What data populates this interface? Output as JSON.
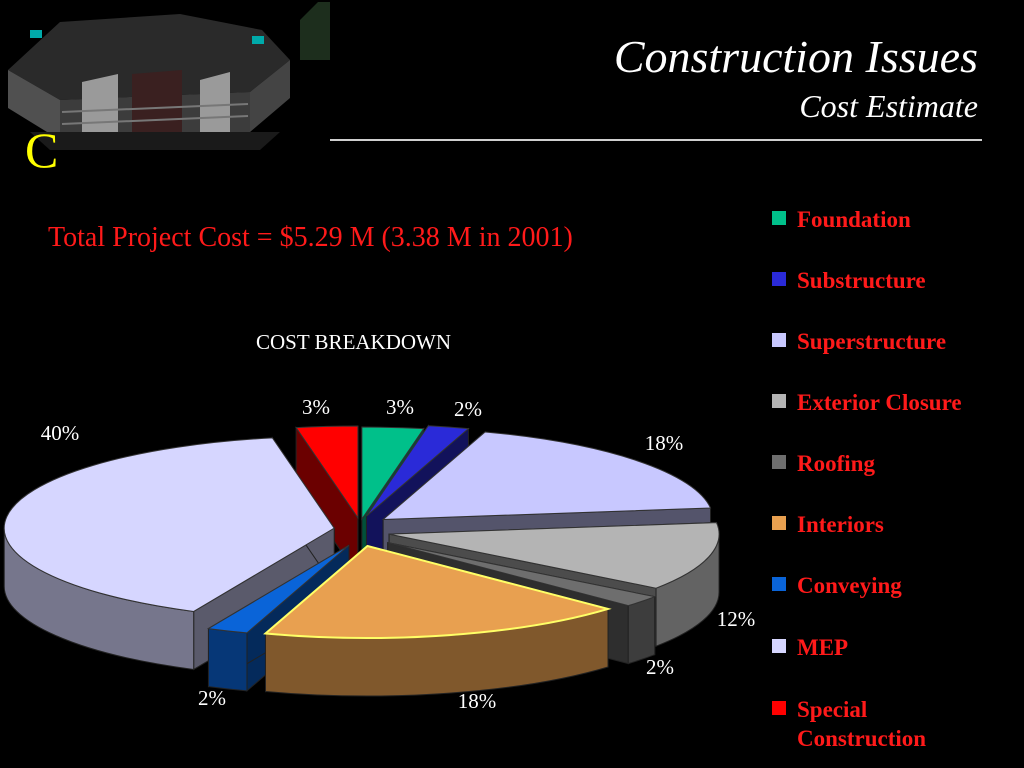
{
  "header": {
    "title": "Construction Issues",
    "subtitle": "Cost Estimate",
    "logo_letter": "C"
  },
  "total_cost_text": "Total Project Cost = $5.29 M (3.38 M in 2001)",
  "chart_data": {
    "type": "pie",
    "title": "COST BREAKDOWN",
    "labels": [
      "Foundation",
      "Substructure",
      "Superstructure",
      "Exterior Closure",
      "Roofing",
      "Interiors",
      "Conveying",
      "MEP",
      "Special Construction"
    ],
    "values": [
      3,
      2,
      18,
      12,
      2,
      18,
      2,
      40,
      3
    ],
    "value_labels": [
      "3%",
      "2%",
      "18%",
      "12%",
      "2%",
      "18%",
      "2%",
      "40%",
      "3%"
    ],
    "colors": [
      "#00c08a",
      "#2a2ad8",
      "#c8c8ff",
      "#b4b4b4",
      "#6e6e6e",
      "#e8a050",
      "#0a64d8",
      "#d6d6ff",
      "#ff0000"
    ],
    "legend_position": "right",
    "style": "3d-exploded"
  }
}
